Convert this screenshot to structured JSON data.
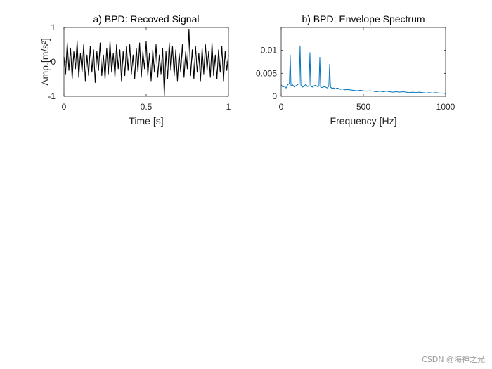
{
  "colors": {
    "signal_trace": "#000000",
    "spectrum_trace": "#0072bd",
    "axes": "#262626"
  },
  "watermark": "CSDN @海神之光",
  "chart_data": [
    {
      "id": "signal",
      "type": "line",
      "title": "a) BPD: Recoved Signal",
      "xlabel": "Time [s]",
      "ylabel": "Amp.[m/s²]",
      "xlim": [
        0,
        1
      ],
      "ylim": [
        -1,
        1
      ],
      "xticks": [
        0,
        0.5,
        1
      ],
      "xtick_labels": [
        "0",
        "0.5",
        "1"
      ],
      "yticks": [
        -1,
        0,
        1
      ],
      "ytick_labels": [
        "-1",
        "0",
        "1"
      ],
      "grid": false,
      "series": [
        {
          "x": [
            0.0,
            0.01,
            0.02,
            0.03,
            0.04,
            0.05,
            0.06,
            0.07,
            0.08,
            0.09,
            0.1,
            0.11,
            0.12,
            0.13,
            0.14,
            0.15,
            0.16,
            0.17,
            0.18,
            0.19,
            0.2,
            0.21,
            0.22,
            0.23,
            0.24,
            0.25,
            0.26,
            0.27,
            0.28,
            0.29,
            0.3,
            0.31,
            0.32,
            0.33,
            0.34,
            0.35,
            0.36,
            0.37,
            0.38,
            0.39,
            0.4,
            0.41,
            0.42,
            0.43,
            0.44,
            0.45,
            0.46,
            0.47,
            0.48,
            0.49,
            0.5,
            0.51,
            0.52,
            0.53,
            0.54,
            0.55,
            0.56,
            0.57,
            0.58,
            0.59,
            0.6,
            0.61,
            0.62,
            0.63,
            0.64,
            0.65,
            0.66,
            0.67,
            0.68,
            0.69,
            0.7,
            0.71,
            0.72,
            0.73,
            0.74,
            0.75,
            0.76,
            0.77,
            0.78,
            0.79,
            0.8,
            0.81,
            0.82,
            0.83,
            0.84,
            0.85,
            0.86,
            0.87,
            0.88,
            0.89,
            0.9,
            0.91,
            0.92,
            0.93,
            0.94,
            0.95,
            0.96,
            0.97,
            0.98,
            0.99,
            1.0
          ],
          "y": [
            0.15,
            -0.35,
            0.55,
            -0.25,
            0.4,
            -0.5,
            0.3,
            -0.2,
            0.6,
            -0.45,
            0.25,
            -0.3,
            0.5,
            -0.55,
            0.2,
            -0.4,
            0.45,
            -0.3,
            0.35,
            -0.6,
            0.3,
            -0.25,
            0.55,
            -0.4,
            0.2,
            -0.5,
            0.4,
            -0.35,
            0.6,
            -0.3,
            0.25,
            -0.45,
            0.5,
            -0.2,
            0.35,
            -0.55,
            0.3,
            -0.4,
            0.45,
            -0.25,
            0.5,
            -0.35,
            0.2,
            -0.5,
            0.4,
            -0.3,
            0.55,
            -0.45,
            0.3,
            -0.2,
            0.6,
            -0.4,
            0.25,
            -0.55,
            0.35,
            -0.3,
            0.5,
            -0.45,
            0.2,
            -0.35,
            0.4,
            -0.98,
            0.3,
            -0.5,
            0.55,
            -0.25,
            0.45,
            -0.4,
            0.35,
            -0.55,
            0.25,
            -0.3,
            0.5,
            -0.45,
            0.3,
            -0.2,
            0.95,
            -0.4,
            0.35,
            -0.5,
            0.45,
            -0.3,
            0.25,
            -0.55,
            0.4,
            -0.35,
            0.5,
            -0.25,
            0.3,
            -0.45,
            0.55,
            -0.4,
            0.2,
            -0.5,
            0.35,
            -0.3,
            0.45,
            -0.55,
            0.3,
            -0.25,
            0.2
          ]
        }
      ]
    },
    {
      "id": "spectrum",
      "type": "line",
      "title": "b) BPD: Envelope Spectrum",
      "xlabel": "Frequency [Hz]",
      "ylabel": "",
      "xlim": [
        0,
        1000
      ],
      "ylim": [
        0,
        0.015
      ],
      "xticks": [
        0,
        500,
        1000
      ],
      "xtick_labels": [
        "0",
        "500",
        "1000"
      ],
      "yticks": [
        0,
        0.005,
        0.01
      ],
      "ytick_labels": [
        "0",
        "0.005",
        "0.01"
      ],
      "grid": false,
      "series": [
        {
          "x": [
            0,
            10,
            20,
            30,
            40,
            50,
            55,
            60,
            70,
            80,
            90,
            100,
            110,
            115,
            120,
            130,
            140,
            150,
            160,
            170,
            175,
            180,
            190,
            200,
            210,
            220,
            230,
            235,
            240,
            250,
            260,
            270,
            280,
            290,
            295,
            300,
            310,
            320,
            330,
            340,
            350,
            360,
            370,
            380,
            390,
            400,
            420,
            440,
            460,
            480,
            500,
            520,
            540,
            560,
            580,
            600,
            620,
            640,
            660,
            680,
            700,
            720,
            740,
            760,
            780,
            800,
            820,
            840,
            860,
            880,
            900,
            920,
            940,
            960,
            980,
            1000
          ],
          "y": [
            0.0025,
            0.002,
            0.0022,
            0.0018,
            0.0025,
            0.0028,
            0.009,
            0.0022,
            0.0025,
            0.002,
            0.0023,
            0.0025,
            0.0028,
            0.011,
            0.0024,
            0.002,
            0.0022,
            0.0026,
            0.0021,
            0.0024,
            0.0095,
            0.0022,
            0.002,
            0.0023,
            0.0024,
            0.0021,
            0.0022,
            0.0085,
            0.002,
            0.0019,
            0.0021,
            0.002,
            0.0018,
            0.0022,
            0.007,
            0.002,
            0.0017,
            0.0018,
            0.0016,
            0.0018,
            0.0017,
            0.0015,
            0.0016,
            0.0015,
            0.0014,
            0.0015,
            0.0014,
            0.0013,
            0.0012,
            0.0013,
            0.0012,
            0.0011,
            0.0012,
            0.0011,
            0.001,
            0.0011,
            0.001,
            0.0011,
            0.001,
            0.0009,
            0.001,
            0.0009,
            0.001,
            0.0009,
            0.0008,
            0.0009,
            0.0008,
            0.0009,
            0.0008,
            0.0007,
            0.0008,
            0.0007,
            0.0008,
            0.0007,
            0.0007,
            0.0006
          ]
        }
      ]
    }
  ]
}
